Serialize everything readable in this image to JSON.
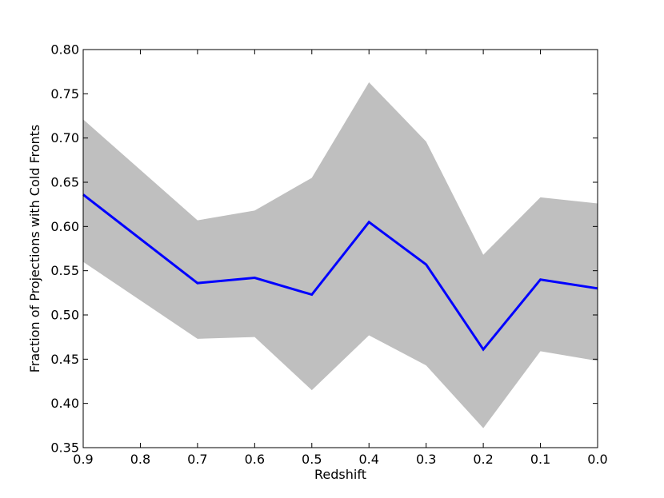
{
  "chart_data": {
    "type": "area",
    "title": "",
    "xlabel": "Redshift",
    "ylabel": "Fraction of Projections with Cold Fronts",
    "xlim": [
      0.9,
      0.0
    ],
    "ylim": [
      0.35,
      0.8
    ],
    "x_reversed": true,
    "grid": false,
    "xticks": [
      0.9,
      0.8,
      0.7,
      0.6,
      0.5,
      0.4,
      0.3,
      0.2,
      0.1,
      0.0
    ],
    "xtick_labels": [
      "0.9",
      "0.8",
      "0.7",
      "0.6",
      "0.5",
      "0.4",
      "0.3",
      "0.2",
      "0.1",
      "0.0"
    ],
    "yticks": [
      0.35,
      0.4,
      0.45,
      0.5,
      0.55,
      0.6,
      0.65,
      0.7,
      0.75,
      0.8
    ],
    "ytick_labels": [
      "0.35",
      "0.40",
      "0.45",
      "0.50",
      "0.55",
      "0.60",
      "0.65",
      "0.70",
      "0.75",
      "0.80"
    ],
    "x": [
      0.9,
      0.7,
      0.6,
      0.5,
      0.4,
      0.3,
      0.2,
      0.1,
      0.0
    ],
    "series": [
      {
        "values": [
          0.636,
          0.536,
          0.542,
          0.523,
          0.605,
          0.557,
          0.461,
          0.54,
          0.53
        ],
        "color": "#0000ff"
      }
    ],
    "band": {
      "upper": [
        0.721,
        0.607,
        0.618,
        0.655,
        0.763,
        0.696,
        0.568,
        0.633,
        0.626
      ],
      "lower": [
        0.56,
        0.473,
        0.475,
        0.415,
        0.477,
        0.443,
        0.372,
        0.459,
        0.448
      ],
      "color": "#bfbfbf"
    }
  }
}
